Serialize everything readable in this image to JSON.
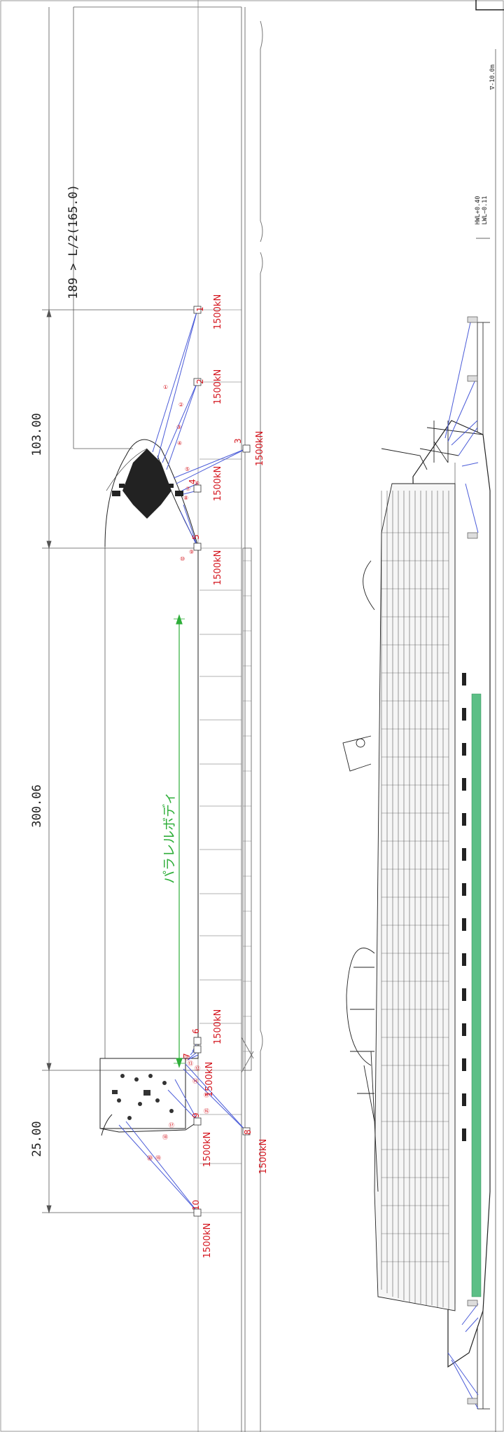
{
  "dimensions": {
    "d103": "103.00",
    "d300": "300.06",
    "d25": "25.00",
    "half_length": "189 > L/2(165.0)"
  },
  "parallel_body": "パラレルボディ",
  "tide": {
    "hwl": "HWL+0.40",
    "lwl": "LWL−0.11",
    "depth": "∇-10.0m"
  },
  "bollards": [
    {
      "id": "1",
      "load": "1500kN"
    },
    {
      "id": "2",
      "load": "1500kN"
    },
    {
      "id": "3",
      "load": "1500kN"
    },
    {
      "id": "4",
      "load": "1500kN"
    },
    {
      "id": "5",
      "load": "1500kN"
    },
    {
      "id": "6",
      "load": "1500kN"
    },
    {
      "id": "7",
      "load": "1500kN"
    },
    {
      "id": "8",
      "load": "1500kN"
    },
    {
      "id": "9",
      "load": "1500kN"
    },
    {
      "id": "10",
      "load": "1500kN"
    }
  ],
  "line_numbers": [
    "①",
    "②",
    "③",
    "④",
    "⑤",
    "⑥",
    "⑦",
    "⑧",
    "⑨",
    "⑩",
    "⑪",
    "⑫",
    "⑬",
    "⑭",
    "⑮",
    "⑯",
    "⑰",
    "⑱",
    "⑲",
    "⑳"
  ],
  "colors": {
    "mooring_line": "#4a5bd8",
    "label": "#d4141d",
    "parallel_body": "#2fae3a",
    "side_band": "#5cbf86"
  }
}
